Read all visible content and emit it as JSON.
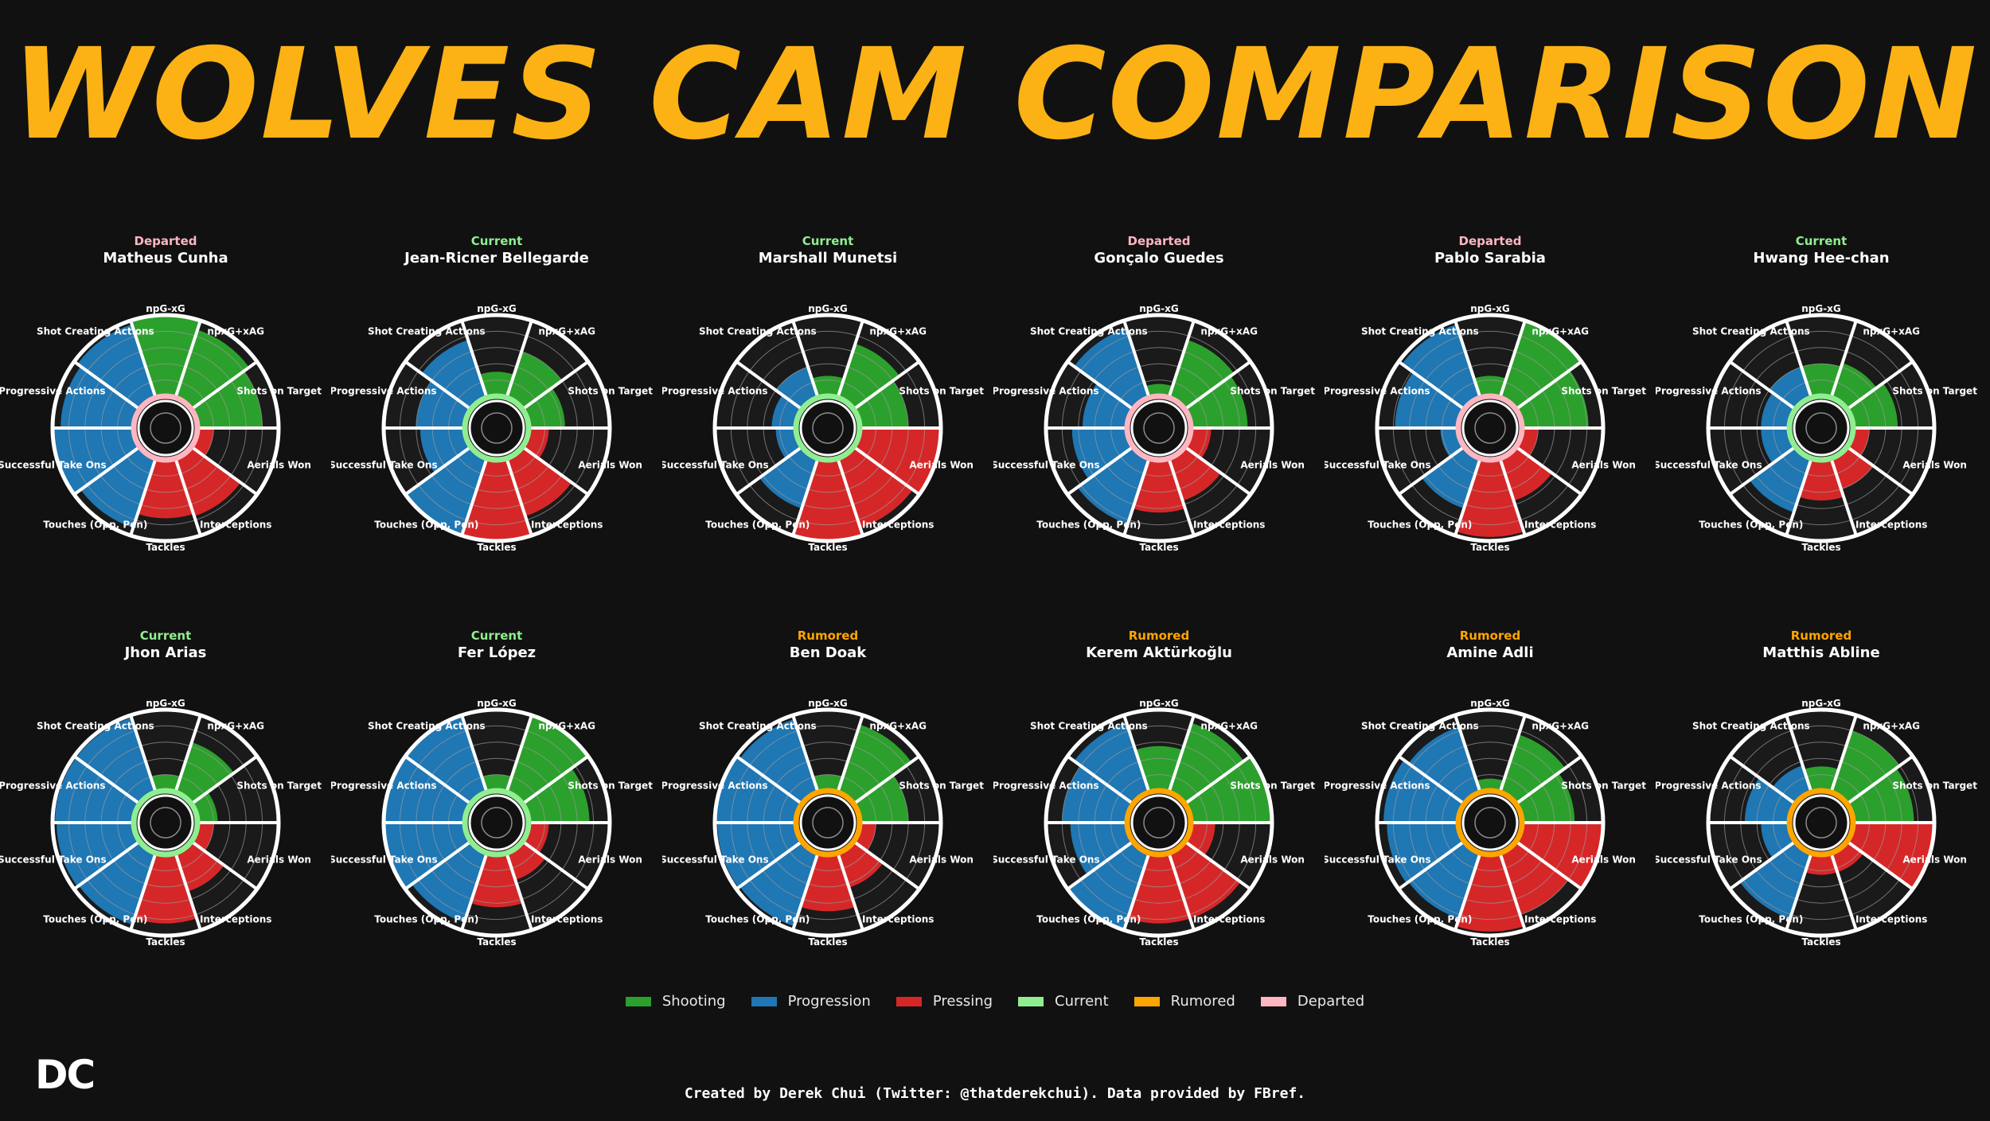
{
  "title": "WOLVES CAM COMPARISON",
  "colors": {
    "background": "#111111",
    "title": "#fcb214",
    "Shooting": "#2ca02c",
    "Progression": "#1f77b4",
    "Pressing": "#d62728",
    "Current": "#90ee90",
    "Rumored": "#ffa500",
    "Departed": "#ffb6c1"
  },
  "legend": [
    {
      "label": "Shooting",
      "color": "#2ca02c"
    },
    {
      "label": "Progression",
      "color": "#1f77b4"
    },
    {
      "label": "Pressing",
      "color": "#d62728"
    },
    {
      "label": "Current",
      "color": "#90ee90"
    },
    {
      "label": "Rumored",
      "color": "#ffa500"
    },
    {
      "label": "Departed",
      "color": "#ffb6c1"
    }
  ],
  "logo": "DC",
  "credit": "Created by Derek Chui (Twitter: @thatderekchui). Data provided by FBref.",
  "chart_data": {
    "type": "radar",
    "scale": [
      0,
      100
    ],
    "metrics": [
      "npG-xG",
      "npxG+xAG",
      "Shots on Target",
      "Aerials Won",
      "Interceptions",
      "Tackles",
      "Touches (Opp. Pen)",
      "Successful Take Ons",
      "Progressive Actions",
      "Shot Creating Actions"
    ],
    "metric_groups": [
      "Shooting",
      "Shooting",
      "Shooting",
      "Pressing",
      "Pressing",
      "Pressing",
      "Progression",
      "Progression",
      "Progression",
      "Progression"
    ],
    "players": [
      {
        "name": "Matheus Cunha",
        "status": "Departed",
        "values": [
          98,
          88,
          80,
          20,
          75,
          72,
          90,
          98,
          90,
          95
        ]
      },
      {
        "name": "Jean-Ricner Bellegarde",
        "status": "Current",
        "values": [
          30,
          60,
          45,
          25,
          75,
          98,
          98,
          55,
          60,
          75
        ]
      },
      {
        "name": "Marshall Munetsi",
        "status": "Current",
        "values": [
          25,
          70,
          60,
          98,
          90,
          98,
          65,
          25,
          30,
          40
        ]
      },
      {
        "name": "Gonçalo Guedes",
        "status": "Departed",
        "values": [
          15,
          75,
          70,
          25,
          55,
          65,
          85,
          68,
          55,
          90
        ]
      },
      {
        "name": "Pablo Sarabia",
        "status": "Departed",
        "values": [
          25,
          98,
          82,
          20,
          55,
          95,
          65,
          22,
          78,
          95
        ]
      },
      {
        "name": "Hwang Hee-chan",
        "status": "Current",
        "values": [
          40,
          45,
          55,
          20,
          40,
          50,
          70,
          35,
          35,
          40
        ]
      },
      {
        "name": "Jhon Arias",
        "status": "Current",
        "values": [
          20,
          65,
          25,
          20,
          50,
          85,
          93,
          95,
          97,
          97
        ]
      },
      {
        "name": "Fer López",
        "status": "Current",
        "values": [
          20,
          98,
          75,
          25,
          35,
          65,
          90,
          98,
          98,
          98
        ]
      },
      {
        "name": "Ben Doak",
        "status": "Rumored",
        "values": [
          20,
          88,
          60,
          20,
          45,
          70,
          95,
          97,
          98,
          95
        ]
      },
      {
        "name": "Kerem Aktürkoğlu",
        "status": "Rumored",
        "values": [
          55,
          90,
          98,
          30,
          85,
          85,
          98,
          70,
          80,
          90
        ]
      },
      {
        "name": "Amine Adli",
        "status": "Rumored",
        "values": [
          15,
          75,
          65,
          98,
          80,
          95,
          85,
          88,
          92,
          85
        ]
      },
      {
        "name": "Matthis Abline",
        "status": "Rumored",
        "values": [
          30,
          80,
          75,
          98,
          25,
          25,
          85,
          35,
          55,
          35
        ]
      }
    ]
  }
}
